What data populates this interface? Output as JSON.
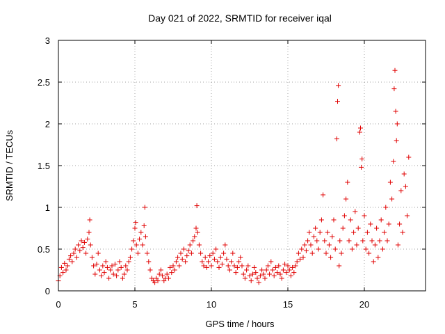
{
  "chart_data": {
    "type": "scatter",
    "title": "Day 021 of 2022, SRMTID for receiver iqal",
    "xlabel": "GPS time / hours",
    "ylabel": "SRMTID / TECUs",
    "xlim": [
      0,
      24
    ],
    "ylim": [
      0,
      3
    ],
    "xticks": [
      0,
      5,
      10,
      15,
      20
    ],
    "xtick_labels": [
      "0",
      "5",
      "10",
      "15",
      "20"
    ],
    "yticks": [
      0,
      0.5,
      1,
      1.5,
      2,
      2.5,
      3
    ],
    "ytick_labels": [
      "0",
      "0.5",
      "1",
      "1.5",
      "2",
      "2.5",
      "3"
    ],
    "grid": true,
    "marker": "+",
    "color": "#e00000",
    "series": [
      {
        "name": "SRMTID",
        "points": [
          [
            0.0,
            0.12
          ],
          [
            0.1,
            0.18
          ],
          [
            0.2,
            0.28
          ],
          [
            0.3,
            0.22
          ],
          [
            0.4,
            0.33
          ],
          [
            0.5,
            0.25
          ],
          [
            0.6,
            0.3
          ],
          [
            0.7,
            0.38
          ],
          [
            0.8,
            0.42
          ],
          [
            0.9,
            0.35
          ],
          [
            1.0,
            0.45
          ],
          [
            1.1,
            0.5
          ],
          [
            1.2,
            0.4
          ],
          [
            1.3,
            0.55
          ],
          [
            1.4,
            0.48
          ],
          [
            1.5,
            0.6
          ],
          [
            1.6,
            0.52
          ],
          [
            1.7,
            0.58
          ],
          [
            1.8,
            0.45
          ],
          [
            1.9,
            0.62
          ],
          [
            2.0,
            0.7
          ],
          [
            2.05,
            0.85
          ],
          [
            2.1,
            0.55
          ],
          [
            2.2,
            0.4
          ],
          [
            2.3,
            0.3
          ],
          [
            2.4,
            0.2
          ],
          [
            2.5,
            0.32
          ],
          [
            2.6,
            0.45
          ],
          [
            2.7,
            0.25
          ],
          [
            2.8,
            0.18
          ],
          [
            2.9,
            0.3
          ],
          [
            3.0,
            0.22
          ],
          [
            3.1,
            0.35
          ],
          [
            3.2,
            0.28
          ],
          [
            3.3,
            0.15
          ],
          [
            3.4,
            0.25
          ],
          [
            3.5,
            0.3
          ],
          [
            3.6,
            0.2
          ],
          [
            3.7,
            0.32
          ],
          [
            3.8,
            0.18
          ],
          [
            3.9,
            0.25
          ],
          [
            4.0,
            0.35
          ],
          [
            4.1,
            0.28
          ],
          [
            4.2,
            0.15
          ],
          [
            4.3,
            0.2
          ],
          [
            4.4,
            0.3
          ],
          [
            4.5,
            0.25
          ],
          [
            4.6,
            0.35
          ],
          [
            4.7,
            0.4
          ],
          [
            4.8,
            0.5
          ],
          [
            4.9,
            0.6
          ],
          [
            5.0,
            0.75
          ],
          [
            5.05,
            0.82
          ],
          [
            5.1,
            0.55
          ],
          [
            5.2,
            0.45
          ],
          [
            5.3,
            0.62
          ],
          [
            5.4,
            0.7
          ],
          [
            5.5,
            0.55
          ],
          [
            5.6,
            0.78
          ],
          [
            5.65,
            1.0
          ],
          [
            5.7,
            0.65
          ],
          [
            5.8,
            0.45
          ],
          [
            5.9,
            0.35
          ],
          [
            6.0,
            0.25
          ],
          [
            6.1,
            0.15
          ],
          [
            6.2,
            0.12
          ],
          [
            6.3,
            0.1
          ],
          [
            6.4,
            0.15
          ],
          [
            6.5,
            0.12
          ],
          [
            6.6,
            0.2
          ],
          [
            6.7,
            0.25
          ],
          [
            6.8,
            0.18
          ],
          [
            6.9,
            0.12
          ],
          [
            7.0,
            0.15
          ],
          [
            7.1,
            0.2
          ],
          [
            7.2,
            0.15
          ],
          [
            7.3,
            0.28
          ],
          [
            7.4,
            0.22
          ],
          [
            7.5,
            0.3
          ],
          [
            7.6,
            0.25
          ],
          [
            7.7,
            0.35
          ],
          [
            7.8,
            0.4
          ],
          [
            7.9,
            0.3
          ],
          [
            8.0,
            0.45
          ],
          [
            8.1,
            0.38
          ],
          [
            8.2,
            0.5
          ],
          [
            8.3,
            0.35
          ],
          [
            8.4,
            0.42
          ],
          [
            8.5,
            0.48
          ],
          [
            8.6,
            0.55
          ],
          [
            8.7,
            0.45
          ],
          [
            8.8,
            0.6
          ],
          [
            8.9,
            0.65
          ],
          [
            9.0,
            0.75
          ],
          [
            9.05,
            1.02
          ],
          [
            9.1,
            0.7
          ],
          [
            9.2,
            0.55
          ],
          [
            9.3,
            0.45
          ],
          [
            9.4,
            0.35
          ],
          [
            9.5,
            0.3
          ],
          [
            9.6,
            0.4
          ],
          [
            9.7,
            0.28
          ],
          [
            9.8,
            0.35
          ],
          [
            9.9,
            0.42
          ],
          [
            10.0,
            0.3
          ],
          [
            10.1,
            0.45
          ],
          [
            10.2,
            0.38
          ],
          [
            10.3,
            0.5
          ],
          [
            10.4,
            0.35
          ],
          [
            10.5,
            0.28
          ],
          [
            10.6,
            0.4
          ],
          [
            10.7,
            0.32
          ],
          [
            10.8,
            0.45
          ],
          [
            10.9,
            0.55
          ],
          [
            11.0,
            0.38
          ],
          [
            11.1,
            0.3
          ],
          [
            11.2,
            0.25
          ],
          [
            11.3,
            0.35
          ],
          [
            11.4,
            0.45
          ],
          [
            11.5,
            0.3
          ],
          [
            11.6,
            0.22
          ],
          [
            11.7,
            0.28
          ],
          [
            11.8,
            0.35
          ],
          [
            11.9,
            0.4
          ],
          [
            12.0,
            0.3
          ],
          [
            12.1,
            0.2
          ],
          [
            12.2,
            0.15
          ],
          [
            12.3,
            0.25
          ],
          [
            12.4,
            0.3
          ],
          [
            12.5,
            0.18
          ],
          [
            12.6,
            0.12
          ],
          [
            12.7,
            0.2
          ],
          [
            12.8,
            0.28
          ],
          [
            12.9,
            0.22
          ],
          [
            13.0,
            0.15
          ],
          [
            13.1,
            0.1
          ],
          [
            13.2,
            0.18
          ],
          [
            13.3,
            0.25
          ],
          [
            13.4,
            0.2
          ],
          [
            13.5,
            0.15
          ],
          [
            13.6,
            0.25
          ],
          [
            13.7,
            0.3
          ],
          [
            13.8,
            0.2
          ],
          [
            13.9,
            0.35
          ],
          [
            14.0,
            0.25
          ],
          [
            14.1,
            0.18
          ],
          [
            14.2,
            0.28
          ],
          [
            14.3,
            0.22
          ],
          [
            14.4,
            0.3
          ],
          [
            14.5,
            0.2
          ],
          [
            14.6,
            0.15
          ],
          [
            14.7,
            0.25
          ],
          [
            14.8,
            0.32
          ],
          [
            14.9,
            0.22
          ],
          [
            15.0,
            0.3
          ],
          [
            15.1,
            0.25
          ],
          [
            15.2,
            0.18
          ],
          [
            15.3,
            0.28
          ],
          [
            15.4,
            0.22
          ],
          [
            15.5,
            0.3
          ],
          [
            15.6,
            0.35
          ],
          [
            15.7,
            0.45
          ],
          [
            15.8,
            0.38
          ],
          [
            15.9,
            0.5
          ],
          [
            16.0,
            0.4
          ],
          [
            16.1,
            0.55
          ],
          [
            16.2,
            0.48
          ],
          [
            16.3,
            0.6
          ],
          [
            16.4,
            0.7
          ],
          [
            16.5,
            0.55
          ],
          [
            16.6,
            0.45
          ],
          [
            16.7,
            0.65
          ],
          [
            16.8,
            0.75
          ],
          [
            16.9,
            0.6
          ],
          [
            17.0,
            0.5
          ],
          [
            17.1,
            0.7
          ],
          [
            17.2,
            0.85
          ],
          [
            17.3,
            1.15
          ],
          [
            17.4,
            0.6
          ],
          [
            17.5,
            0.45
          ],
          [
            17.6,
            0.7
          ],
          [
            17.7,
            0.55
          ],
          [
            17.8,
            0.4
          ],
          [
            17.9,
            0.65
          ],
          [
            18.0,
            0.85
          ],
          [
            18.1,
            0.5
          ],
          [
            18.2,
            1.82
          ],
          [
            18.25,
            2.27
          ],
          [
            18.3,
            2.46
          ],
          [
            18.35,
            0.3
          ],
          [
            18.4,
            0.6
          ],
          [
            18.5,
            0.45
          ],
          [
            18.6,
            0.75
          ],
          [
            18.7,
            0.9
          ],
          [
            18.8,
            1.1
          ],
          [
            18.9,
            1.3
          ],
          [
            19.0,
            0.6
          ],
          [
            19.1,
            0.85
          ],
          [
            19.2,
            0.5
          ],
          [
            19.3,
            0.7
          ],
          [
            19.4,
            0.95
          ],
          [
            19.5,
            0.55
          ],
          [
            19.6,
            0.75
          ],
          [
            19.7,
            1.9
          ],
          [
            19.75,
            1.95
          ],
          [
            19.8,
            1.48
          ],
          [
            19.85,
            1.58
          ],
          [
            19.9,
            0.6
          ],
          [
            20.0,
            0.9
          ],
          [
            20.1,
            0.5
          ],
          [
            20.2,
            0.7
          ],
          [
            20.3,
            0.45
          ],
          [
            20.4,
            0.8
          ],
          [
            20.5,
            0.6
          ],
          [
            20.6,
            0.35
          ],
          [
            20.7,
            0.55
          ],
          [
            20.8,
            0.75
          ],
          [
            20.9,
            0.4
          ],
          [
            21.0,
            0.6
          ],
          [
            21.1,
            0.85
          ],
          [
            21.2,
            0.5
          ],
          [
            21.3,
            0.7
          ],
          [
            21.4,
            1.0
          ],
          [
            21.5,
            0.6
          ],
          [
            21.6,
            0.8
          ],
          [
            21.7,
            1.3
          ],
          [
            21.8,
            1.1
          ],
          [
            21.9,
            1.55
          ],
          [
            21.95,
            2.42
          ],
          [
            22.0,
            2.64
          ],
          [
            22.05,
            2.15
          ],
          [
            22.1,
            1.8
          ],
          [
            22.15,
            2.0
          ],
          [
            22.2,
            0.55
          ],
          [
            22.3,
            0.8
          ],
          [
            22.4,
            1.2
          ],
          [
            22.5,
            0.7
          ],
          [
            22.6,
            1.4
          ],
          [
            22.7,
            1.25
          ],
          [
            22.8,
            0.9
          ],
          [
            22.9,
            1.6
          ]
        ]
      }
    ]
  }
}
